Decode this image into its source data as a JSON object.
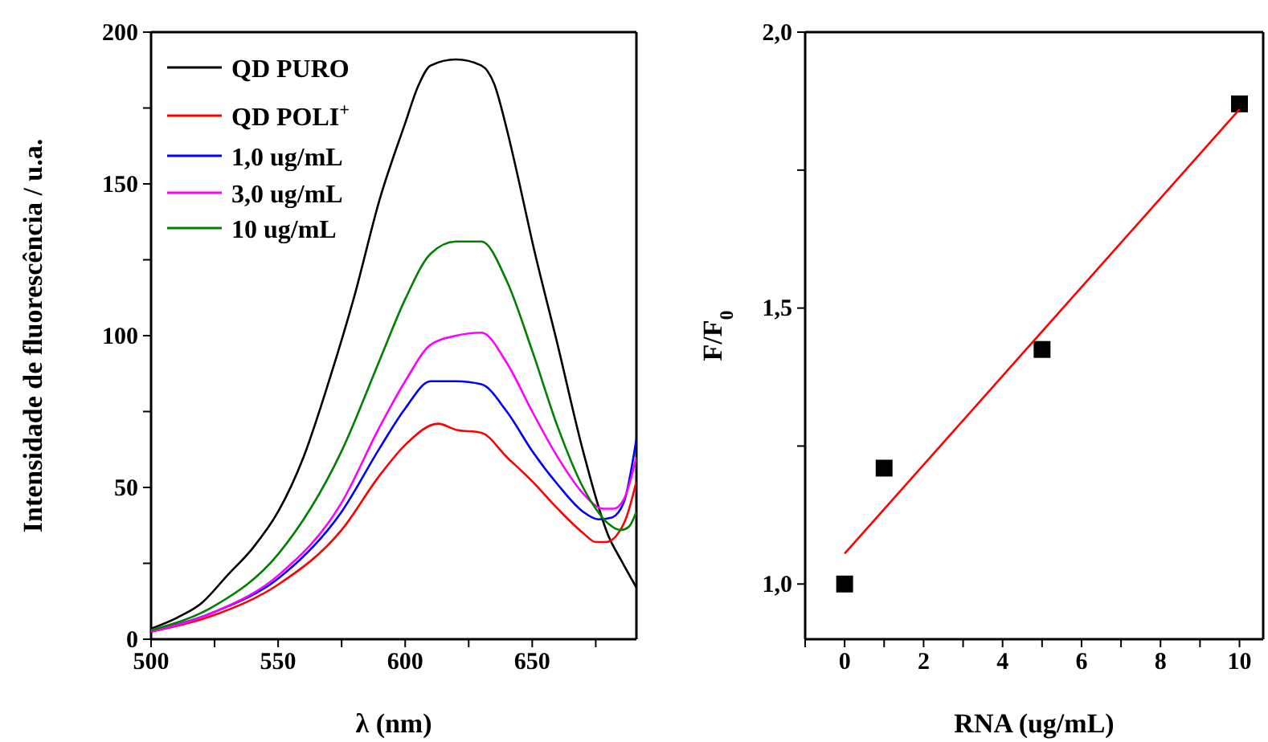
{
  "chart_data": [
    {
      "type": "line",
      "xlabel": "λ (nm)",
      "ylabel": "Intensidade de fluorescência / u.a.",
      "xlim": [
        500,
        691
      ],
      "ylim": [
        0,
        200
      ],
      "xticks": [
        500,
        {
          "value": 525,
          "label": null
        },
        550,
        {
          "value": 575,
          "label": null
        },
        600,
        {
          "value": 625,
          "label": null
        },
        650,
        {
          "value": 675,
          "label": null
        }
      ],
      "yticks": [
        0,
        {
          "value": 25,
          "label": null
        },
        50,
        {
          "value": 75,
          "label": null
        },
        100,
        {
          "value": 125,
          "label": null
        },
        150,
        {
          "value": 175,
          "label": null
        },
        200
      ],
      "legend": "top left",
      "grid": false,
      "series": [
        {
          "name": "QD PURO",
          "color": "#000000",
          "x": [
            500,
            510,
            520,
            530,
            540,
            550,
            560,
            570,
            580,
            590,
            600,
            605,
            610,
            620,
            630,
            635,
            640,
            645,
            650,
            660,
            670,
            680,
            685,
            691
          ],
          "values": [
            3.5,
            7,
            12,
            21,
            30,
            42,
            60,
            85,
            113,
            145,
            170,
            182,
            189,
            191,
            189,
            183,
            168,
            150,
            131,
            97,
            62,
            34,
            26,
            17
          ]
        },
        {
          "name": "QD POLI$^{+}$",
          "color": "#ff0000",
          "x": [
            500,
            525,
            550,
            575,
            590,
            600,
            613,
            620,
            630,
            640,
            650,
            660,
            670,
            675,
            679,
            683,
            687,
            691
          ],
          "values": [
            2.5,
            8,
            18,
            36,
            54,
            64,
            71,
            69,
            68,
            60,
            52,
            43,
            35,
            32,
            32,
            34,
            40,
            52
          ]
        },
        {
          "name": "1,0 ug/mL",
          "color": "#0000ff",
          "x": [
            500,
            525,
            550,
            575,
            590,
            600,
            610,
            620,
            630,
            640,
            650,
            660,
            670,
            676,
            681,
            686,
            691
          ],
          "values": [
            2.5,
            9,
            20,
            42,
            63,
            76,
            85,
            85,
            84,
            75,
            62,
            51,
            42,
            39.5,
            40,
            45,
            66
          ]
        },
        {
          "name": "3,0 ug/mL",
          "color": "#ff00ff",
          "x": [
            500,
            525,
            550,
            575,
            590,
            600,
            610,
            620,
            630,
            640,
            650,
            660,
            670,
            678,
            682,
            686,
            691
          ],
          "values": [
            2.5,
            9,
            21,
            45,
            70,
            85,
            97,
            100,
            101,
            91,
            75,
            60,
            48,
            43,
            43,
            46,
            60
          ]
        },
        {
          "name": "10 ug/mL",
          "color": "#008000",
          "x": [
            500,
            525,
            550,
            575,
            590,
            600,
            610,
            620,
            630,
            640,
            650,
            660,
            670,
            675,
            680,
            685,
            688,
            691
          ],
          "values": [
            3,
            11,
            28,
            62,
            92,
            112,
            127,
            131,
            131,
            118,
            95,
            70,
            50,
            43,
            38,
            36,
            37,
            42
          ]
        }
      ]
    },
    {
      "type": "scatter",
      "xlabel": "RNA (ug/mL)",
      "ylabel": "F/F$_{0}$",
      "xlim": [
        -1,
        10.6
      ],
      "ylim": [
        0.9,
        2.0
      ],
      "xticks": [
        {
          "value": -1,
          "label": null
        },
        0,
        {
          "value": 1,
          "label": null
        },
        2,
        {
          "value": 3,
          "label": null
        },
        4,
        {
          "value": 5,
          "label": null
        },
        6,
        {
          "value": 7,
          "label": null
        },
        8,
        {
          "value": 9,
          "label": null
        },
        10
      ],
      "yticks": [
        {
          "value": 1.0,
          "label": "1,0"
        },
        {
          "value": 1.25,
          "label": null
        },
        {
          "value": 1.5,
          "label": "1,5"
        },
        {
          "value": 1.75,
          "label": null
        },
        {
          "value": 2.0,
          "label": "2,0"
        }
      ],
      "grid": false,
      "legend": false,
      "series": [
        {
          "color": "#000000",
          "marker": "square",
          "x": [
            0,
            1,
            5,
            10
          ],
          "values": [
            1.0,
            1.21,
            1.425,
            1.87
          ]
        },
        {
          "type": "line",
          "marker": "none",
          "color": "#ff0000",
          "x": [
            0,
            10
          ],
          "values": [
            1.055,
            1.86
          ]
        }
      ]
    }
  ]
}
